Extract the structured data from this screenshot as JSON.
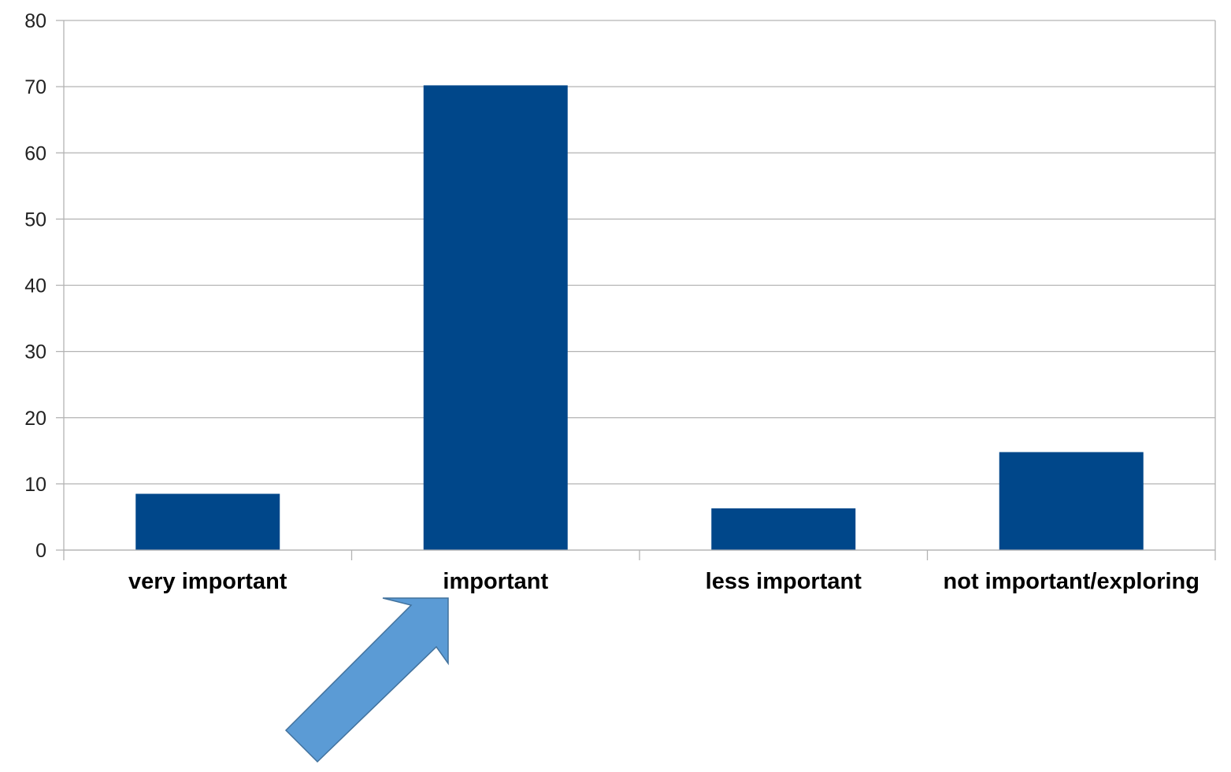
{
  "chart_data": {
    "type": "bar",
    "categories": [
      "very important",
      "important",
      "less important",
      "not important/exploring"
    ],
    "values": [
      8.5,
      70.2,
      6.3,
      14.8
    ],
    "ylim": [
      0,
      80
    ],
    "yticks": [
      0,
      10,
      20,
      30,
      40,
      50,
      60,
      70,
      80
    ],
    "ytick_labels": [
      "0",
      "10",
      "20",
      "30",
      "40",
      "50",
      "60",
      "70",
      "80"
    ],
    "grid": true,
    "legend": "none",
    "title": "",
    "xlabel": "",
    "ylabel": "",
    "bar_color": "#00478a",
    "gridline_color": "#b3b3b3",
    "axis_color": "#b3b3b3",
    "annotation": {
      "shape": "arrow",
      "points_to": "important",
      "fill_color": "#5b9bd5",
      "stroke_color": "#41719c"
    }
  }
}
